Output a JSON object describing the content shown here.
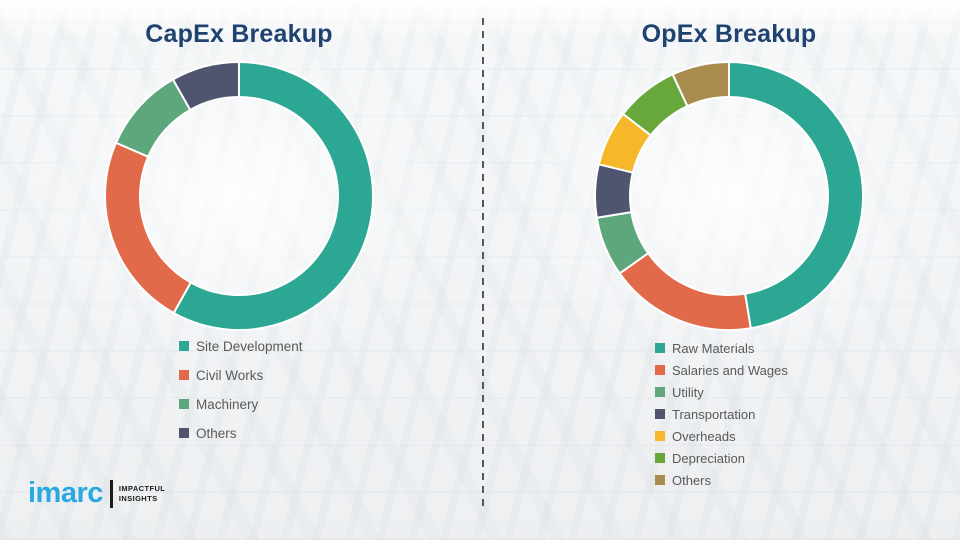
{
  "background": {
    "description": "washed-out industrial plant photo",
    "base_color": "#f2f4f6"
  },
  "titles": {
    "color": "#1F4270"
  },
  "divider": {
    "type": "vertical-dashed-line",
    "color": "#55585d"
  },
  "legend_text_color": "#595959",
  "logo": {
    "brand": "imarc",
    "tagline_line1": "IMPACTFUL",
    "tagline_line2": "INSIGHTS",
    "brand_color": "#29A9E1"
  },
  "chart_data": [
    {
      "type": "pie",
      "subtype": "donut",
      "title": "CapEx Breakup",
      "direction": "clockwise",
      "start_angle_deg": 0,
      "value_labels_shown": false,
      "values_are_percent_estimates": true,
      "legend_position": "below-chart",
      "slices": [
        {
          "label": "Site Development",
          "value": 58.1,
          "color": "#2BA794"
        },
        {
          "label": "Civil Works",
          "value": 23.4,
          "color": "#E16A4B"
        },
        {
          "label": "Machinery",
          "value": 10.3,
          "color": "#5EA67B"
        },
        {
          "label": "Others",
          "value": 8.2,
          "color": "#4F546F"
        }
      ]
    },
    {
      "type": "pie",
      "subtype": "donut",
      "title": "OpEx Breakup",
      "direction": "clockwise",
      "start_angle_deg": 0,
      "value_labels_shown": false,
      "values_are_percent_estimates": true,
      "legend_position": "below-chart",
      "slices": [
        {
          "label": "Raw Materials",
          "value": 47.4,
          "color": "#2BA794"
        },
        {
          "label": "Salaries and Wages",
          "value": 17.8,
          "color": "#E16A4B"
        },
        {
          "label": "Utility",
          "value": 7.2,
          "color": "#5EA67B"
        },
        {
          "label": "Transportation",
          "value": 6.4,
          "color": "#4F546F"
        },
        {
          "label": "Overheads",
          "value": 6.7,
          "color": "#F7B72B"
        },
        {
          "label": "Depreciation",
          "value": 7.6,
          "color": "#67A73B"
        },
        {
          "label": "Others",
          "value": 6.9,
          "color": "#A78C4D"
        }
      ]
    }
  ]
}
